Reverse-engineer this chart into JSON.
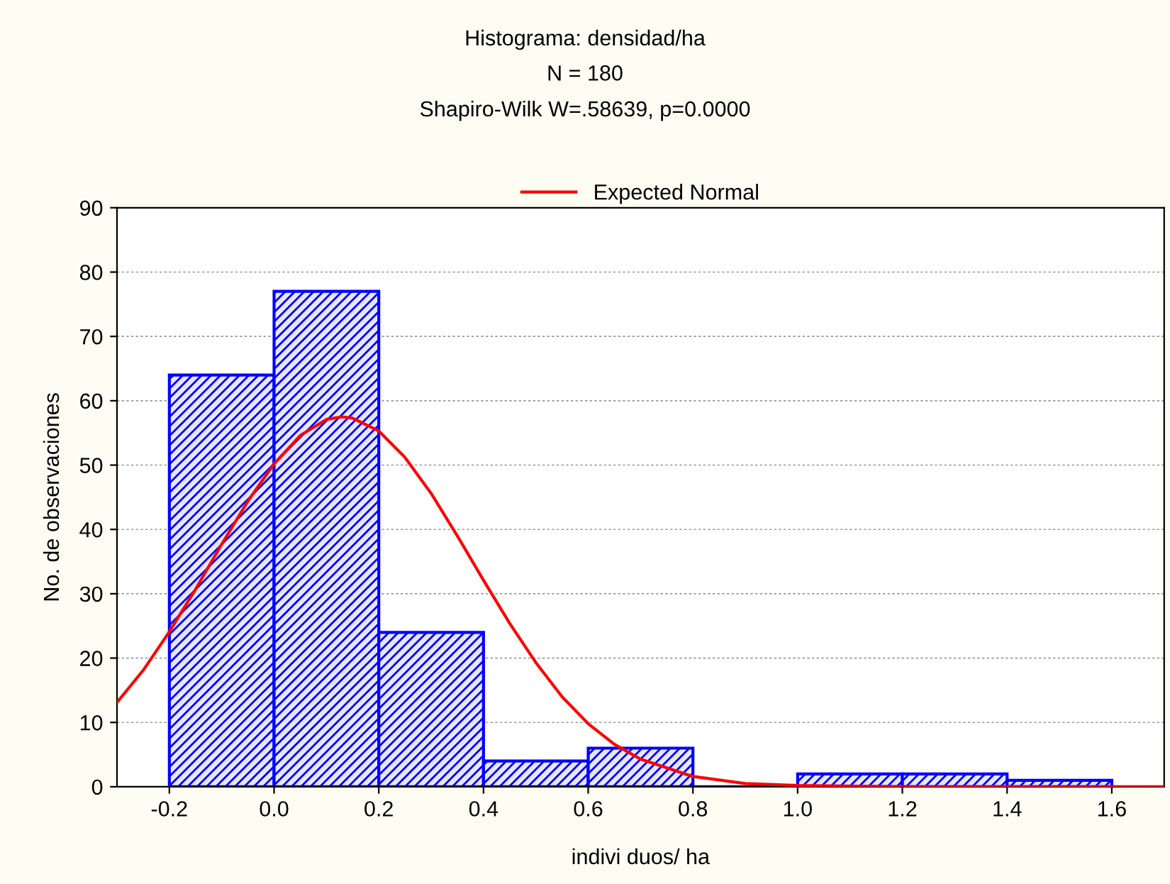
{
  "chart_data": {
    "type": "histogram",
    "title": "Histograma: densidad/ha",
    "subtitle": "N = 180\nShapiro-Wilk W=.58639, p=0.0000",
    "xlabel": "indivi duos/ ha",
    "ylabel": "No. de observaciones",
    "bins": [
      -0.2,
      0.0,
      0.2,
      0.4,
      0.6,
      0.8,
      1.0,
      1.2,
      1.4,
      1.6
    ],
    "values": [
      64,
      77,
      24,
      4,
      6,
      0,
      2,
      2,
      1
    ],
    "color": "#0000ff",
    "series": [
      {
        "type": "line",
        "name": "Expected Normal",
        "color": "#ff0000",
        "x": [
          -0.3,
          -0.25,
          -0.2,
          -0.15,
          -0.1,
          -0.05,
          0.0,
          0.05,
          0.1,
          0.13,
          0.15,
          0.2,
          0.25,
          0.3,
          0.35,
          0.4,
          0.45,
          0.5,
          0.55,
          0.6,
          0.65,
          0.7,
          0.8,
          0.9,
          1.0,
          1.2,
          1.7
        ],
        "values": [
          13.1,
          18.1,
          24.1,
          30.7,
          37.7,
          44.4,
          50.2,
          54.6,
          57.1,
          57.5,
          57.3,
          55.3,
          51.2,
          45.6,
          39.0,
          32.1,
          25.4,
          19.3,
          14.0,
          9.8,
          6.6,
          4.3,
          1.6,
          0.5,
          0.2,
          0,
          0
        ]
      }
    ],
    "xlim": [
      -0.3,
      1.7
    ],
    "xticks": [
      {
        "value": -0.2,
        "label": "-0.2"
      },
      {
        "value": 0.0,
        "label": "0.0"
      },
      {
        "value": 0.2,
        "label": "0.2"
      },
      {
        "value": 0.4,
        "label": "0.4"
      },
      {
        "value": 0.6,
        "label": "0.6"
      },
      {
        "value": 0.8,
        "label": "0.8"
      },
      {
        "value": 1.0,
        "label": "1.0"
      },
      {
        "value": 1.2,
        "label": "1.2"
      },
      {
        "value": 1.4,
        "label": "1.4"
      },
      {
        "value": 1.6,
        "label": "1.6"
      }
    ],
    "ylim": [
      0,
      90
    ],
    "yticks": [
      0,
      10,
      20,
      30,
      40,
      50,
      60,
      70,
      80,
      90
    ],
    "grid": "y",
    "legend": "top"
  }
}
